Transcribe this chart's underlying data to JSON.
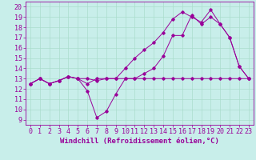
{
  "xlabel": "Windchill (Refroidissement éolien,°C)",
  "bg_color": "#c8eeea",
  "line_color": "#990099",
  "grid_color": "#aaddcc",
  "xlim": [
    -0.5,
    23.5
  ],
  "ylim": [
    8.5,
    20.5
  ],
  "xticks": [
    0,
    1,
    2,
    3,
    4,
    5,
    6,
    7,
    8,
    9,
    10,
    11,
    12,
    13,
    14,
    15,
    16,
    17,
    18,
    19,
    20,
    21,
    22,
    23
  ],
  "yticks": [
    9,
    10,
    11,
    12,
    13,
    14,
    15,
    16,
    17,
    18,
    19,
    20
  ],
  "line1_x": [
    0,
    1,
    2,
    3,
    4,
    5,
    6,
    7,
    8,
    9,
    10,
    11,
    12,
    13,
    14,
    15,
    16,
    17,
    18,
    19,
    20,
    21,
    22,
    23
  ],
  "line1_y": [
    12.5,
    13.0,
    12.5,
    12.8,
    13.2,
    13.0,
    12.5,
    13.0,
    13.0,
    13.0,
    13.0,
    13.0,
    13.0,
    13.0,
    13.0,
    13.0,
    13.0,
    13.0,
    13.0,
    13.0,
    13.0,
    13.0,
    13.0,
    13.0
  ],
  "line2_x": [
    0,
    1,
    2,
    3,
    4,
    5,
    6,
    7,
    8,
    9,
    10,
    11,
    12,
    13,
    14,
    15,
    16,
    17,
    18,
    19,
    20,
    21,
    22,
    23
  ],
  "line2_y": [
    12.5,
    13.0,
    12.5,
    12.8,
    13.2,
    13.0,
    11.8,
    9.2,
    9.8,
    11.5,
    13.0,
    13.0,
    13.5,
    14.0,
    15.2,
    17.2,
    17.2,
    19.2,
    18.3,
    19.0,
    18.3,
    17.0,
    14.2,
    13.0
  ],
  "line3_x": [
    0,
    1,
    2,
    3,
    4,
    5,
    6,
    7,
    8,
    9,
    10,
    11,
    12,
    13,
    14,
    15,
    16,
    17,
    18,
    19,
    20,
    21,
    22,
    23
  ],
  "line3_y": [
    12.5,
    13.0,
    12.5,
    12.8,
    13.2,
    13.0,
    13.0,
    12.8,
    13.0,
    13.0,
    14.0,
    15.0,
    15.8,
    16.5,
    17.5,
    18.8,
    19.5,
    19.0,
    18.5,
    19.7,
    18.3,
    17.0,
    14.2,
    13.0
  ],
  "xlabel_fontsize": 6.5,
  "tick_fontsize": 6
}
